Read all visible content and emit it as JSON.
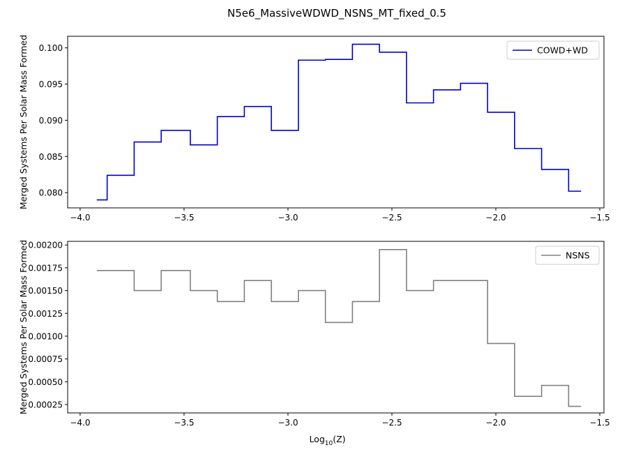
{
  "title": "N5e6_MassiveWDWD_NSNS_MT_fixed_0.5",
  "chart_data": [
    {
      "type": "line",
      "drawstyle": "steps-post",
      "title": "N5e6_MassiveWDWD_NSNS_MT_fixed_0.5",
      "xlabel": "",
      "ylabel": "Merged Systems Per Solar Mass Formed",
      "xlim": [
        -4.06,
        -1.48
      ],
      "ylim": [
        0.0779,
        0.1016
      ],
      "xticks": [
        -4.0,
        -3.5,
        -3.0,
        -2.5,
        -2.0,
        -1.5
      ],
      "xtick_labels": [
        "−4.0",
        "−3.5",
        "−3.0",
        "−2.5",
        "−2.0",
        "−1.5"
      ],
      "yticks": [
        0.08,
        0.085,
        0.09,
        0.095,
        0.1
      ],
      "ytick_labels": [
        "0.080",
        "0.085",
        "0.090",
        "0.095",
        "0.100"
      ],
      "legend": "top-right",
      "grid": false,
      "series": [
        {
          "name": "COWD+WD",
          "color": "#0000cd",
          "x": [
            -3.92,
            -3.87,
            -3.74,
            -3.61,
            -3.47,
            -3.34,
            -3.21,
            -3.08,
            -2.95,
            -2.82,
            -2.69,
            -2.56,
            -2.43,
            -2.3,
            -2.17,
            -2.04,
            -1.91,
            -1.78,
            -1.65,
            -1.59
          ],
          "y": [
            0.079,
            0.0824,
            0.087,
            0.0886,
            0.0866,
            0.0905,
            0.0919,
            0.0886,
            0.0983,
            0.0984,
            0.1005,
            0.0994,
            0.0924,
            0.0942,
            0.0951,
            0.0911,
            0.0861,
            0.0832,
            0.0802,
            0.0802
          ]
        }
      ]
    },
    {
      "type": "line",
      "drawstyle": "steps-post",
      "xlabel": "Log",
      "xlabel_sub": "10",
      "xlabel_tail": "(Z)",
      "ylabel": "Merged Systems Per Solar Mass Formed",
      "xlim": [
        -4.06,
        -1.48
      ],
      "ylim": [
        0.000158,
        0.00204
      ],
      "xticks": [
        -4.0,
        -3.5,
        -3.0,
        -2.5,
        -2.0,
        -1.5
      ],
      "xtick_labels": [
        "−4.0",
        "−3.5",
        "−3.0",
        "−2.5",
        "−2.0",
        "−1.5"
      ],
      "yticks": [
        0.00025,
        0.0005,
        0.00075,
        0.001,
        0.00125,
        0.0015,
        0.00175,
        0.002
      ],
      "ytick_labels": [
        "0.00025",
        "0.00050",
        "0.00075",
        "0.00100",
        "0.00125",
        "0.00150",
        "0.00175",
        "0.00200"
      ],
      "legend": "top-right",
      "grid": false,
      "series": [
        {
          "name": "NSNS",
          "color": "#808080",
          "x": [
            -3.92,
            -3.74,
            -3.61,
            -3.47,
            -3.34,
            -3.21,
            -3.08,
            -2.95,
            -2.82,
            -2.69,
            -2.56,
            -2.43,
            -2.3,
            -2.04,
            -1.91,
            -1.78,
            -1.65,
            -1.59
          ],
          "y": [
            0.00172,
            0.0015,
            0.00172,
            0.0015,
            0.00138,
            0.00161,
            0.00138,
            0.0015,
            0.00115,
            0.00138,
            0.00195,
            0.0015,
            0.00161,
            0.00092,
            0.00034,
            0.00046,
            0.00023,
            0.00023
          ]
        }
      ]
    }
  ]
}
